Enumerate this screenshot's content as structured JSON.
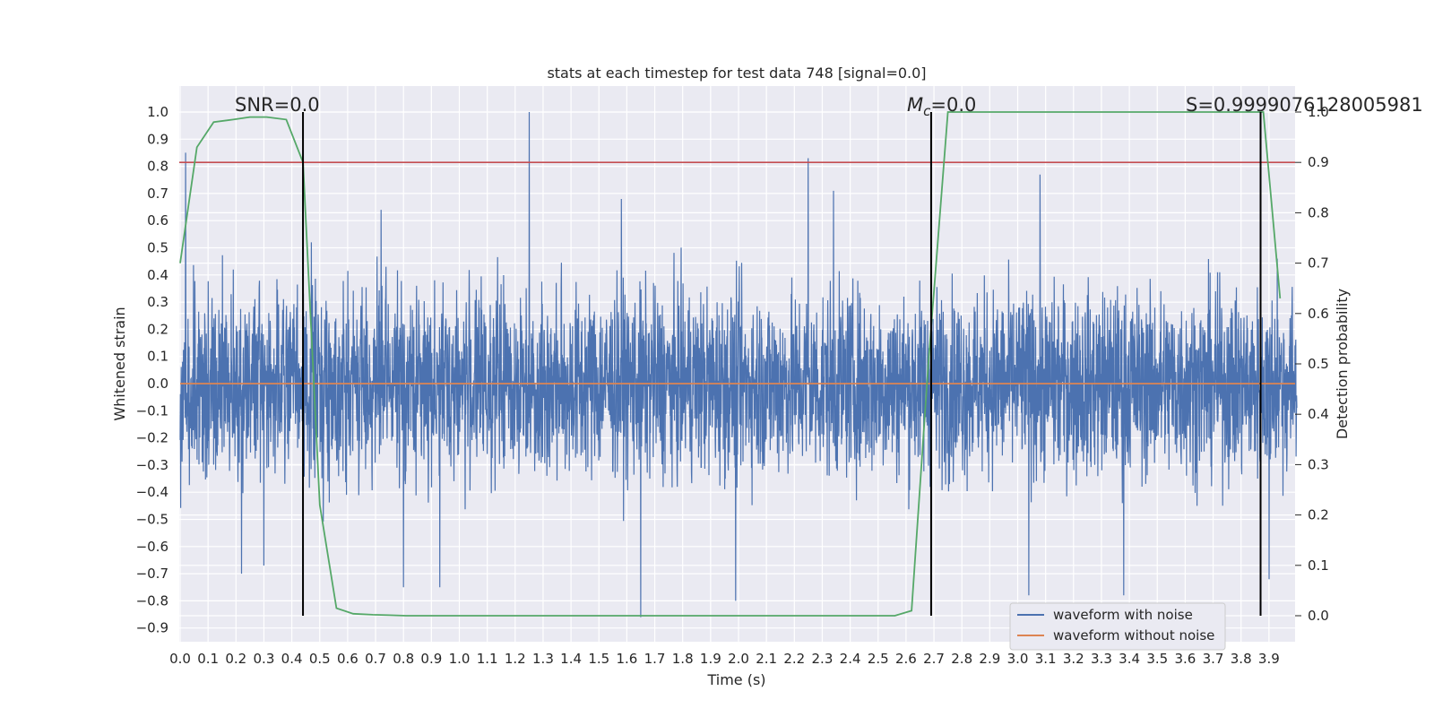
{
  "chart_data": {
    "type": "line",
    "title": "stats at each timestep for test data 748 [signal=0.0]",
    "xlabel": "Time (s)",
    "ylabel": "Whitened strain",
    "y2label": "Detection probability",
    "xlim": [
      0.0,
      4.0
    ],
    "ylim": [
      -0.95,
      1.08
    ],
    "y2lim": [
      -0.05,
      1.02
    ],
    "x_ticks": [
      "0.0",
      "0.1",
      "0.2",
      "0.3",
      "0.4",
      "0.5",
      "0.6",
      "0.7",
      "0.8",
      "0.9",
      "1.0",
      "1.1",
      "1.2",
      "1.3",
      "1.4",
      "1.5",
      "1.6",
      "1.7",
      "1.8",
      "1.9",
      "2.0",
      "2.1",
      "2.2",
      "2.3",
      "2.4",
      "2.5",
      "2.6",
      "2.7",
      "2.8",
      "2.9",
      "3.0",
      "3.1",
      "3.2",
      "3.3",
      "3.4",
      "3.5",
      "3.6",
      "3.7",
      "3.8",
      "3.9"
    ],
    "y_ticks": [
      "-0.9",
      "-0.8",
      "-0.7",
      "-0.6",
      "-0.5",
      "-0.4",
      "-0.3",
      "-0.2",
      "-0.1",
      "0.0",
      "0.1",
      "0.2",
      "0.3",
      "0.4",
      "0.5",
      "0.6",
      "0.7",
      "0.8",
      "0.9",
      "1.0"
    ],
    "y2_ticks": [
      "0.0",
      "0.1",
      "0.2",
      "0.3",
      "0.4",
      "0.5",
      "0.6",
      "0.7",
      "0.8",
      "0.9",
      "1.0"
    ],
    "grid": true,
    "legend_position": "lower-right",
    "series": [
      {
        "name": "waveform with noise",
        "color": "#4c72b0",
        "axis": "left",
        "noise_envelope": {
          "typical_amplitude": 0.4,
          "min": -0.86,
          "max": 1.0
        },
        "peaks": [
          [
            0.02,
            0.85
          ],
          [
            0.47,
            0.52
          ],
          [
            0.72,
            0.64
          ],
          [
            1.25,
            1.0
          ],
          [
            1.58,
            0.68
          ],
          [
            2.25,
            0.83
          ],
          [
            2.34,
            0.71
          ],
          [
            3.08,
            0.77
          ],
          [
            3.93,
            0.46
          ]
        ],
        "troughs": [
          [
            0.22,
            -0.7
          ],
          [
            0.3,
            -0.67
          ],
          [
            0.8,
            -0.75
          ],
          [
            0.93,
            -0.75
          ],
          [
            1.65,
            -0.86
          ],
          [
            1.99,
            -0.8
          ],
          [
            3.04,
            -0.78
          ],
          [
            3.38,
            -0.78
          ],
          [
            3.9,
            -0.72
          ]
        ]
      },
      {
        "name": "waveform without noise",
        "color": "#dd8452",
        "axis": "left",
        "x": [
          0.0,
          4.0
        ],
        "values": [
          0.0,
          0.0
        ]
      },
      {
        "name": "detection probability",
        "color": "#55a868",
        "axis": "right",
        "x": [
          0.0,
          0.06,
          0.12,
          0.19,
          0.25,
          0.31,
          0.38,
          0.44,
          0.5,
          0.56,
          0.62,
          0.69,
          0.75,
          0.81,
          1.0,
          1.5,
          2.0,
          2.56,
          2.62,
          2.68,
          2.75,
          2.81,
          3.0,
          3.5,
          3.88,
          3.94
        ],
        "values": [
          0.7,
          0.93,
          0.98,
          0.985,
          0.99,
          0.99,
          0.985,
          0.9,
          0.22,
          0.015,
          0.004,
          0.002,
          0.001,
          0.0,
          0.0,
          0.0,
          0.0,
          0.0,
          0.01,
          0.5,
          1.0,
          1.0,
          1.0,
          1.0,
          1.0,
          0.63
        ]
      }
    ],
    "threshold_line": {
      "axis": "right",
      "value": 0.9,
      "color": "#c44e52"
    },
    "vertical_markers": [
      0.44,
      2.69,
      3.87
    ],
    "annotations": [
      {
        "text": "SNR=0.0",
        "x": 0.2,
        "y": 1.02
      },
      {
        "text_prefix": "M",
        "text_sub": "c",
        "text_suffix": "=0.0",
        "x": 2.6,
        "y": 1.02
      },
      {
        "text": "S=0.9999076128005981",
        "x": 3.6,
        "y": 1.02
      }
    ]
  }
}
